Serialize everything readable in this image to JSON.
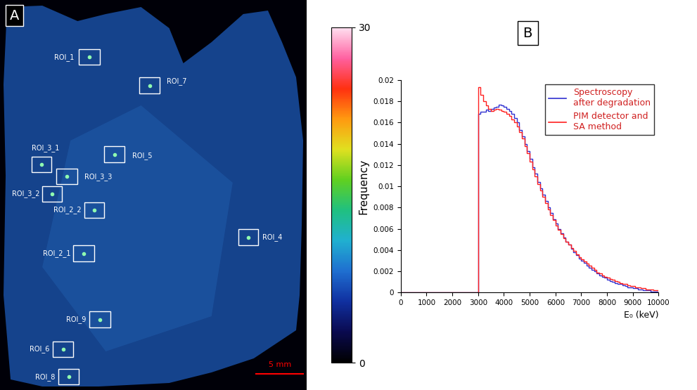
{
  "panel_a": {
    "label": "A",
    "rois": [
      "ROI_1",
      "ROI_7",
      "ROI_3_1",
      "ROI_5",
      "ROI_3_3",
      "ROI_3_2",
      "ROI_2_2",
      "ROI_4",
      "ROI_2_1",
      "ROI_9",
      "ROI_6",
      "ROI_8"
    ],
    "scale_bar": "5 mm",
    "colorbar": {
      "range": [
        0,
        30
      ],
      "ticks": [
        0,
        30
      ]
    }
  },
  "chart_data": {
    "type": "histogram",
    "label": "B",
    "bins": [
      0,
      100,
      200,
      300,
      400,
      500,
      600,
      700,
      800,
      900,
      1000,
      1100,
      1200,
      1300,
      1400,
      1500,
      1600,
      1700,
      1800,
      1900,
      2000,
      2100,
      2200,
      2300,
      2400,
      2500,
      2600,
      2700,
      2800,
      2900,
      3000,
      3100,
      3200,
      3300,
      3400,
      3500,
      3600,
      3700,
      3800,
      3900,
      4000,
      4100,
      4200,
      4300,
      4400,
      4500,
      4600,
      4700,
      4800,
      4900,
      5000,
      5100,
      5200,
      5300,
      5400,
      5500,
      5600,
      5700,
      5800,
      5900,
      6000,
      6100,
      6200,
      6300,
      6400,
      6500,
      6600,
      6700,
      6800,
      6900,
      7000,
      7100,
      7200,
      7300,
      7400,
      7500,
      7600,
      7700,
      7800,
      7900,
      8000,
      8100,
      8200,
      8300,
      8400,
      8500,
      8600,
      8700,
      8800,
      8900,
      9000,
      9100,
      9200,
      9300,
      9400,
      9500,
      9600,
      9700,
      9800,
      9900,
      10000
    ],
    "series": [
      {
        "name": "Spectroscopy\nafter degradation",
        "color": "#3030d0",
        "values": [
          0,
          0,
          0,
          0,
          0,
          0,
          0,
          0,
          0,
          0,
          0,
          0,
          0,
          0,
          0,
          0,
          0,
          0,
          0,
          0,
          0,
          0,
          0,
          0,
          0,
          0,
          0,
          0,
          0,
          0,
          0.0168,
          0.017,
          0.017,
          0.0172,
          0.0171,
          0.0173,
          0.0174,
          0.0175,
          0.0177,
          0.0176,
          0.0175,
          0.0173,
          0.0171,
          0.0168,
          0.0164,
          0.016,
          0.0153,
          0.0147,
          0.014,
          0.0133,
          0.0126,
          0.0118,
          0.0112,
          0.0104,
          0.0098,
          0.0092,
          0.0086,
          0.008,
          0.0075,
          0.0069,
          0.0065,
          0.006,
          0.0056,
          0.0052,
          0.0048,
          0.0045,
          0.0041,
          0.0038,
          0.0035,
          0.0032,
          0.003,
          0.0028,
          0.0025,
          0.0023,
          0.0021,
          0.002,
          0.0018,
          0.0016,
          0.0015,
          0.0014,
          0.0012,
          0.0011,
          0.001,
          0.0009,
          0.0008,
          0.0008,
          0.0007,
          0.0006,
          0.0005,
          0.0005,
          0.0004,
          0.0004,
          0.0003,
          0.0003,
          0.0002,
          0.0002,
          0.0002,
          0.0001,
          0.0001,
          0.0001
        ]
      },
      {
        "name": "PIM detector and\nSA method",
        "color": "#ff2020",
        "values": [
          0,
          0,
          0,
          0,
          0,
          0,
          0,
          0,
          0,
          0,
          0,
          0,
          0,
          0,
          0,
          0,
          0,
          0,
          0,
          0,
          0,
          0,
          0,
          0,
          0,
          0,
          0,
          0,
          0,
          0,
          0.0193,
          0.0186,
          0.018,
          0.0176,
          0.0173,
          0.0171,
          0.0172,
          0.0173,
          0.0172,
          0.0171,
          0.017,
          0.0168,
          0.0166,
          0.0163,
          0.016,
          0.0156,
          0.0151,
          0.0145,
          0.0138,
          0.0131,
          0.0123,
          0.0116,
          0.0109,
          0.0102,
          0.0096,
          0.009,
          0.0084,
          0.0078,
          0.0073,
          0.0068,
          0.0063,
          0.0059,
          0.0055,
          0.0051,
          0.0048,
          0.0045,
          0.0042,
          0.0039,
          0.0036,
          0.0033,
          0.0031,
          0.0029,
          0.0027,
          0.0025,
          0.0023,
          0.0021,
          0.0019,
          0.0018,
          0.0016,
          0.0015,
          0.0014,
          0.0013,
          0.0012,
          0.0011,
          0.001,
          0.0009,
          0.0008,
          0.0008,
          0.0007,
          0.0006,
          0.0006,
          0.0005,
          0.0005,
          0.0004,
          0.0004,
          0.0003,
          0.0003,
          0.0003,
          0.0002,
          0.0002
        ]
      }
    ],
    "xlabel": "E₀ (keV)",
    "ylabel": "Frequency",
    "xlim": [
      0,
      10000
    ],
    "xticks": [
      0,
      1000,
      2000,
      3000,
      4000,
      5000,
      6000,
      7000,
      8000,
      9000,
      10000
    ],
    "ylim": [
      0,
      0.02
    ],
    "yticks": [
      0,
      0.002,
      0.004,
      0.006,
      0.008,
      0.01,
      0.012,
      0.014,
      0.016,
      0.018,
      0.02
    ],
    "legend": "upper right"
  }
}
